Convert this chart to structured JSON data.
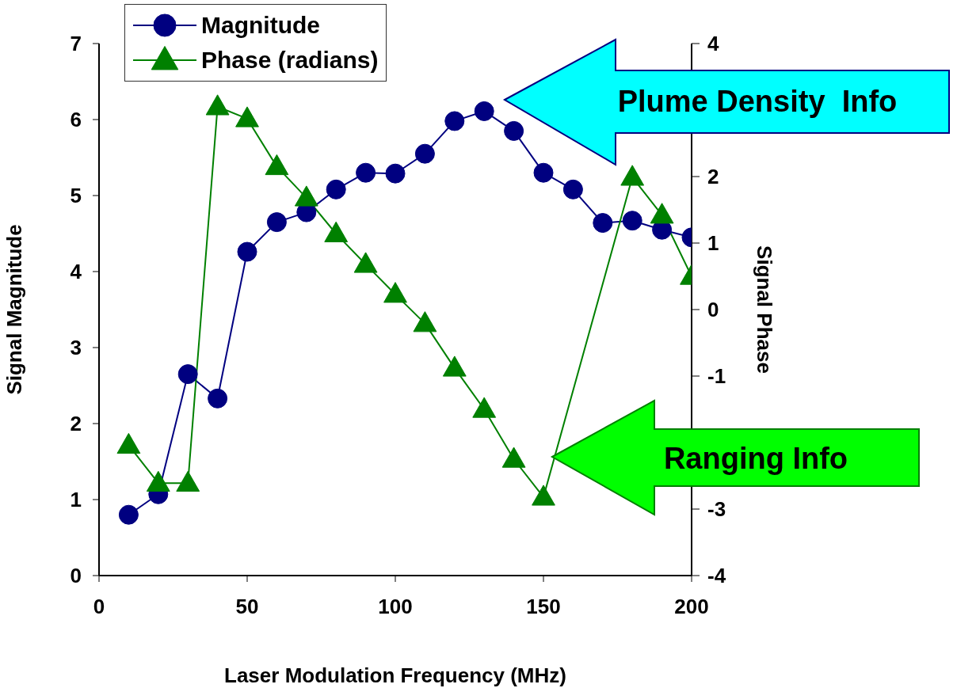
{
  "chart_data": {
    "type": "line",
    "xlabel": "Laser Modulation Frequency (MHz)",
    "ylabel": "Signal Magnitude",
    "y2label": "Signal Phase",
    "x": [
      10,
      20,
      30,
      40,
      50,
      60,
      70,
      80,
      90,
      100,
      110,
      120,
      130,
      140,
      150,
      160,
      170,
      180,
      190,
      200
    ],
    "series": [
      {
        "name": "Magnitude",
        "color": "#000080",
        "marker": "circle",
        "values": [
          0.8,
          1.07,
          2.65,
          2.33,
          4.26,
          4.65,
          4.78,
          5.08,
          5.3,
          5.29,
          5.55,
          5.98,
          6.11,
          5.85,
          5.3,
          5.08,
          4.64,
          4.67,
          4.55,
          4.45
        ]
      },
      {
        "name": "Phase (radians)",
        "color": "#008000",
        "marker": "triangle",
        "axis": "y2",
        "values": [
          -2.04,
          -2.61,
          -2.61,
          3.05,
          2.87,
          2.15,
          1.68,
          1.14,
          0.68,
          0.23,
          -0.21,
          -0.88,
          -1.5,
          -2.25,
          -2.82,
          null,
          null,
          1.99,
          1.42,
          0.5
        ]
      }
    ],
    "xlim": [
      0,
      200
    ],
    "xticks": [
      0,
      50,
      100,
      150,
      200
    ],
    "ylim": [
      0,
      7
    ],
    "yticks": [
      0,
      1,
      2,
      3,
      4,
      5,
      6,
      7
    ],
    "y2lim": [
      -4,
      4
    ],
    "y2ticks": [
      -4,
      -3,
      {
        "value": -2,
        "label": null
      },
      -1,
      0,
      1,
      2,
      {
        "value": 3,
        "label": null
      },
      4
    ],
    "grid": false,
    "legend": "top left",
    "line_style": "solid",
    "annotations": [
      "Plume Density  Info",
      "Ranging Info"
    ]
  }
}
